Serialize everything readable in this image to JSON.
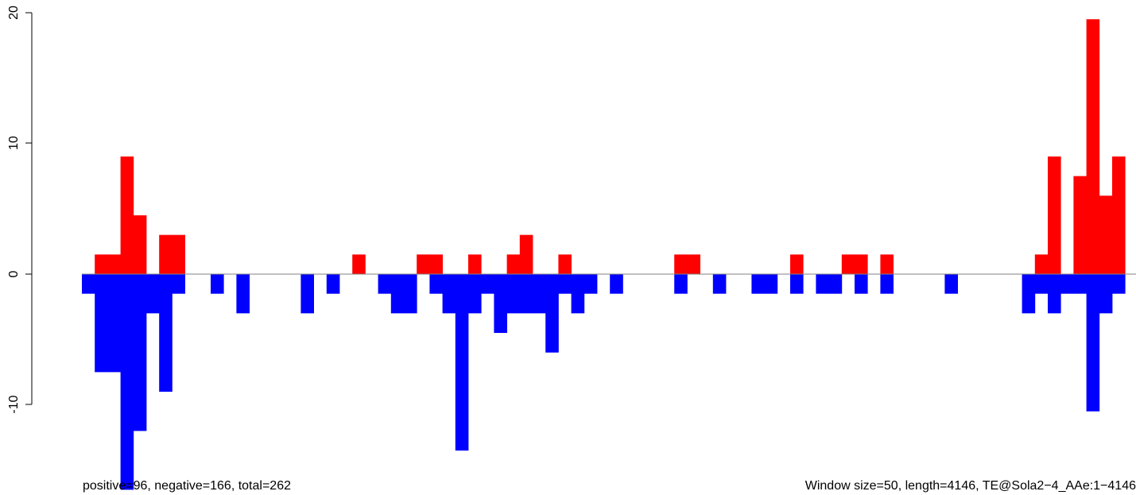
{
  "chart_data": {
    "type": "bar",
    "title": "",
    "xlabel": "",
    "ylabel": "",
    "ylim": [
      -16.5,
      20
    ],
    "y_ticks": [
      "-10",
      "0",
      "10",
      "20"
    ],
    "x_bin_count": 81,
    "grid": false,
    "legend": "none",
    "colors": {
      "positive": "#ff0000",
      "negative": "#0000ff",
      "baseline": "#808080"
    },
    "series": [
      {
        "color": "#ff0000",
        "bars": [
          {
            "bin": 1,
            "value": 1.5
          },
          {
            "bin": 2,
            "value": 1.5
          },
          {
            "bin": 3,
            "value": 9
          },
          {
            "bin": 4,
            "value": 4.5
          },
          {
            "bin": 6,
            "value": 3
          },
          {
            "bin": 7,
            "value": 3
          },
          {
            "bin": 21,
            "value": 1.5
          },
          {
            "bin": 26,
            "value": 1.5
          },
          {
            "bin": 27,
            "value": 1.5
          },
          {
            "bin": 30,
            "value": 1.5
          },
          {
            "bin": 33,
            "value": 1.5
          },
          {
            "bin": 34,
            "value": 3
          },
          {
            "bin": 37,
            "value": 1.5
          },
          {
            "bin": 46,
            "value": 1.5
          },
          {
            "bin": 47,
            "value": 1.5
          },
          {
            "bin": 55,
            "value": 1.5
          },
          {
            "bin": 59,
            "value": 1.5
          },
          {
            "bin": 60,
            "value": 1.5
          },
          {
            "bin": 62,
            "value": 1.5
          },
          {
            "bin": 74,
            "value": 1.5
          },
          {
            "bin": 75,
            "value": 9
          },
          {
            "bin": 77,
            "value": 7.5
          },
          {
            "bin": 78,
            "value": 19.5
          },
          {
            "bin": 79,
            "value": 6
          },
          {
            "bin": 80,
            "value": 9
          }
        ]
      },
      {
        "color": "#0000ff",
        "bars": [
          {
            "bin": 0,
            "value": -1.5
          },
          {
            "bin": 1,
            "value": -7.5
          },
          {
            "bin": 2,
            "value": -7.5
          },
          {
            "bin": 3,
            "value": -16.5
          },
          {
            "bin": 4,
            "value": -12
          },
          {
            "bin": 5,
            "value": -3
          },
          {
            "bin": 6,
            "value": -9
          },
          {
            "bin": 7,
            "value": -1.5
          },
          {
            "bin": 10,
            "value": -1.5
          },
          {
            "bin": 12,
            "value": -3
          },
          {
            "bin": 17,
            "value": -3
          },
          {
            "bin": 19,
            "value": -1.5
          },
          {
            "bin": 23,
            "value": -1.5
          },
          {
            "bin": 24,
            "value": -3
          },
          {
            "bin": 25,
            "value": -3
          },
          {
            "bin": 27,
            "value": -1.5
          },
          {
            "bin": 28,
            "value": -3
          },
          {
            "bin": 29,
            "value": -13.5
          },
          {
            "bin": 30,
            "value": -3
          },
          {
            "bin": 31,
            "value": -1.5
          },
          {
            "bin": 32,
            "value": -4.5
          },
          {
            "bin": 33,
            "value": -3
          },
          {
            "bin": 34,
            "value": -3
          },
          {
            "bin": 35,
            "value": -3
          },
          {
            "bin": 36,
            "value": -6
          },
          {
            "bin": 37,
            "value": -1.5
          },
          {
            "bin": 38,
            "value": -3
          },
          {
            "bin": 39,
            "value": -1.5
          },
          {
            "bin": 41,
            "value": -1.5
          },
          {
            "bin": 46,
            "value": -1.5
          },
          {
            "bin": 49,
            "value": -1.5
          },
          {
            "bin": 52,
            "value": -1.5
          },
          {
            "bin": 53,
            "value": -1.5
          },
          {
            "bin": 55,
            "value": -1.5
          },
          {
            "bin": 57,
            "value": -1.5
          },
          {
            "bin": 58,
            "value": -1.5
          },
          {
            "bin": 60,
            "value": -1.5
          },
          {
            "bin": 62,
            "value": -1.5
          },
          {
            "bin": 67,
            "value": -1.5
          },
          {
            "bin": 73,
            "value": -3
          },
          {
            "bin": 74,
            "value": -1.5
          },
          {
            "bin": 75,
            "value": -3
          },
          {
            "bin": 76,
            "value": -1.5
          },
          {
            "bin": 77,
            "value": -1.5
          },
          {
            "bin": 78,
            "value": -10.5
          },
          {
            "bin": 79,
            "value": -3
          },
          {
            "bin": 80,
            "value": -1.5
          }
        ]
      }
    ],
    "annotations": {
      "left": "positive=96, negative=166, total=262",
      "right": "Window size=50, length=4146, TE@Sola2−4_AAe:1−4146"
    }
  }
}
